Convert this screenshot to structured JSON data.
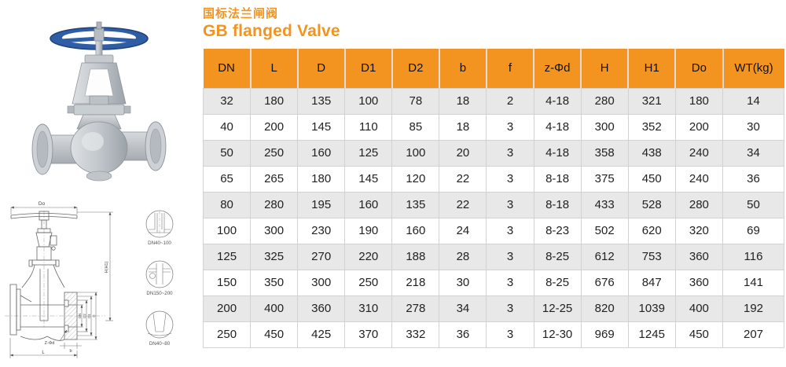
{
  "header": {
    "title_cn": "国标法兰闸阀",
    "title_en": "GB flanged Valve"
  },
  "colors": {
    "header_bg": "#F2941F",
    "accent": "#F2941F",
    "row_alt": "#E8E8E8",
    "border": "#D2D2D2",
    "text": "#1A1A1A"
  },
  "chart_data": {
    "type": "table",
    "title": "GB flanged Valve dimensions",
    "headers": [
      "DN",
      "L",
      "D",
      "D1",
      "D2",
      "b",
      "f",
      "z-Φd",
      "H",
      "H1",
      "Do",
      "WT(kg)"
    ],
    "rows": [
      [
        "32",
        "180",
        "135",
        "100",
        "78",
        "18",
        "2",
        "4-18",
        "280",
        "321",
        "180",
        "14"
      ],
      [
        "40",
        "200",
        "145",
        "110",
        "85",
        "18",
        "3",
        "4-18",
        "300",
        "352",
        "200",
        "30"
      ],
      [
        "50",
        "250",
        "160",
        "125",
        "100",
        "20",
        "3",
        "4-18",
        "358",
        "438",
        "240",
        "34"
      ],
      [
        "65",
        "265",
        "180",
        "145",
        "120",
        "22",
        "3",
        "8-18",
        "375",
        "450",
        "240",
        "36"
      ],
      [
        "80",
        "280",
        "195",
        "160",
        "135",
        "22",
        "3",
        "8-18",
        "433",
        "528",
        "280",
        "50"
      ],
      [
        "100",
        "300",
        "230",
        "190",
        "160",
        "24",
        "3",
        "8-23",
        "502",
        "620",
        "320",
        "69"
      ],
      [
        "125",
        "325",
        "270",
        "220",
        "188",
        "28",
        "3",
        "8-25",
        "612",
        "753",
        "360",
        "116"
      ],
      [
        "150",
        "350",
        "300",
        "250",
        "218",
        "30",
        "3",
        "8-25",
        "676",
        "847",
        "360",
        "141"
      ],
      [
        "200",
        "400",
        "360",
        "310",
        "278",
        "34",
        "3",
        "12-25",
        "820",
        "1039",
        "400",
        "192"
      ],
      [
        "250",
        "450",
        "425",
        "370",
        "332",
        "36",
        "3",
        "12-30",
        "969",
        "1245",
        "450",
        "207"
      ]
    ]
  },
  "drawing": {
    "dim_do": "Do",
    "dim_h": "H(H1)",
    "dim_dn": "DN",
    "dim_d2": "D2",
    "dim_d1": "D1",
    "dim_d": "D",
    "dim_zd": "Z-Φd",
    "dim_b": "b",
    "dim_l": "L",
    "details": [
      "DN40~100",
      "DN150~200",
      "DN40~80"
    ]
  }
}
